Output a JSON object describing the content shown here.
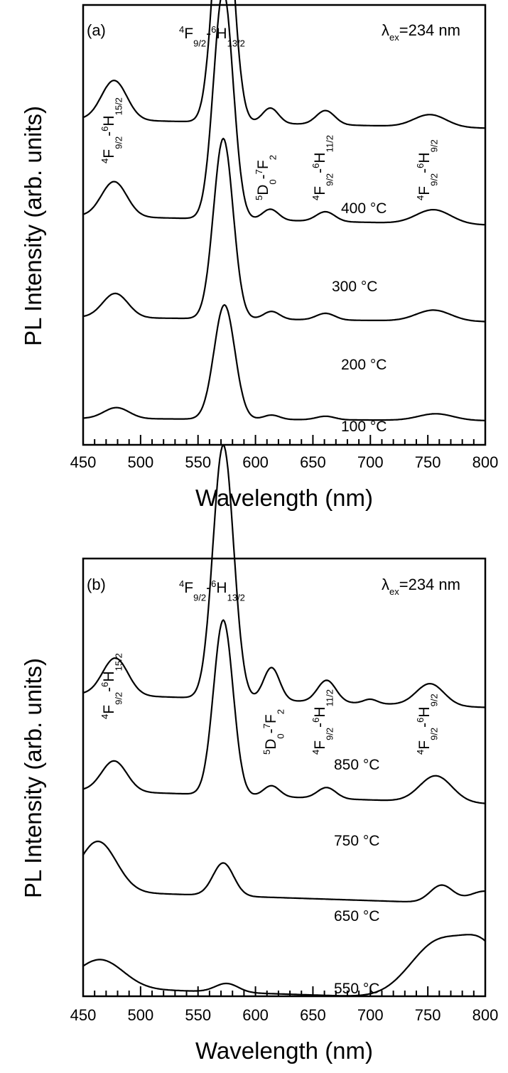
{
  "chart_data": [
    {
      "type": "line",
      "panel_label": "(a)",
      "excitation": {
        "prefix": "λ",
        "sub": "ex",
        "text": "=234 nm"
      },
      "xlabel": "Wavelength (nm)",
      "ylabel": "PL Intensity (arb. units)",
      "xlim": [
        450,
        800
      ],
      "xticks": [
        "450",
        "500",
        "550",
        "600",
        "650",
        "700",
        "750",
        "800"
      ],
      "yticks": [],
      "transitions": [
        {
          "id": "t1",
          "parts": [
            {
              "t": "4",
              "k": "sup"
            },
            {
              "t": "F",
              "k": "n"
            },
            {
              "t": "9/2",
              "k": "sub"
            },
            {
              "t": "-",
              "k": "n"
            },
            {
              "t": "6",
              "k": "sup"
            },
            {
              "t": "H",
              "k": "n"
            },
            {
              "t": "15/2",
              "k": "sub"
            }
          ]
        },
        {
          "id": "t2",
          "parts": [
            {
              "t": "4",
              "k": "sup"
            },
            {
              "t": "F",
              "k": "n"
            },
            {
              "t": "9/2",
              "k": "sub"
            },
            {
              "t": "-",
              "k": "n"
            },
            {
              "t": "6",
              "k": "sup"
            },
            {
              "t": "H",
              "k": "n"
            },
            {
              "t": "13/2",
              "k": "sub"
            }
          ]
        },
        {
          "id": "t3",
          "parts": [
            {
              "t": "5",
              "k": "sup"
            },
            {
              "t": "D",
              "k": "n"
            },
            {
              "t": "0",
              "k": "sub"
            },
            {
              "t": "-",
              "k": "n"
            },
            {
              "t": "7",
              "k": "sup"
            },
            {
              "t": "F",
              "k": "n"
            },
            {
              "t": "2",
              "k": "sub"
            }
          ]
        },
        {
          "id": "t4",
          "parts": [
            {
              "t": "4",
              "k": "sup"
            },
            {
              "t": "F",
              "k": "n"
            },
            {
              "t": "9/2",
              "k": "sub"
            },
            {
              "t": "-",
              "k": "n"
            },
            {
              "t": "6",
              "k": "sup"
            },
            {
              "t": "H",
              "k": "n"
            },
            {
              "t": "11/2",
              "k": "sub"
            }
          ]
        },
        {
          "id": "t5",
          "parts": [
            {
              "t": "4",
              "k": "sup"
            },
            {
              "t": "F",
              "k": "n"
            },
            {
              "t": "9/2",
              "k": "sub"
            },
            {
              "t": "-",
              "k": "n"
            },
            {
              "t": "6",
              "k": "sup"
            },
            {
              "t": "H",
              "k": "n"
            },
            {
              "t": "9/2",
              "k": "sub"
            }
          ]
        }
      ],
      "series": [
        {
          "name": "400 °C",
          "baseline": 0.74,
          "tilt": -0.02,
          "bumps": [
            [
              477,
              11,
              0.09
            ],
            [
              572,
              8.5,
              0.575
            ],
            [
              613,
              7,
              0.035
            ],
            [
              661,
              8,
              0.032
            ],
            [
              752,
              14,
              0.028
            ]
          ]
        },
        {
          "name": "300 °C",
          "baseline": 0.52,
          "tilt": -0.02,
          "bumps": [
            [
              477,
              11,
              0.08
            ],
            [
              572,
              8.5,
              0.52
            ],
            [
              613,
              7,
              0.025
            ],
            [
              661,
              8,
              0.022
            ],
            [
              755,
              15,
              0.032
            ]
          ]
        },
        {
          "name": "200 °C",
          "baseline": 0.29,
          "tilt": -0.01,
          "bumps": [
            [
              478,
              11,
              0.055
            ],
            [
              572,
              8.5,
              0.41
            ],
            [
              614,
              7,
              0.018
            ],
            [
              661,
              8,
              0.015
            ],
            [
              755,
              15,
              0.025
            ]
          ]
        },
        {
          "name": "100 °C",
          "baseline": 0.06,
          "tilt": -0.005,
          "bumps": [
            [
              479,
              11,
              0.025
            ],
            [
              573,
              9,
              0.26
            ],
            [
              614,
              7,
              0.01
            ],
            [
              661,
              8,
              0.008
            ],
            [
              757,
              15,
              0.015
            ]
          ]
        }
      ]
    },
    {
      "type": "line",
      "panel_label": "(b)",
      "excitation": {
        "prefix": "λ",
        "sub": "ex",
        "text": "=234 nm"
      },
      "xlabel": "Wavelength (nm)",
      "ylabel": "PL Intensity (arb. units)",
      "xlim": [
        450,
        800
      ],
      "xticks": [
        "450",
        "500",
        "550",
        "600",
        "650",
        "700",
        "750",
        "800"
      ],
      "yticks": [],
      "transitions": [
        {
          "id": "t1",
          "parts": [
            {
              "t": "4",
              "k": "sup"
            },
            {
              "t": "F",
              "k": "n"
            },
            {
              "t": "9/2",
              "k": "sub"
            },
            {
              "t": "-",
              "k": "n"
            },
            {
              "t": "6",
              "k": "sup"
            },
            {
              "t": "H",
              "k": "n"
            },
            {
              "t": "15/2",
              "k": "sub"
            }
          ]
        },
        {
          "id": "t2",
          "parts": [
            {
              "t": "4",
              "k": "sup"
            },
            {
              "t": "F",
              "k": "n"
            },
            {
              "t": "9/2",
              "k": "sub"
            },
            {
              "t": "-",
              "k": "n"
            },
            {
              "t": "6",
              "k": "sup"
            },
            {
              "t": "H",
              "k": "n"
            },
            {
              "t": "13/2",
              "k": "sub"
            }
          ]
        },
        {
          "id": "t3",
          "parts": [
            {
              "t": "5",
              "k": "sup"
            },
            {
              "t": "D",
              "k": "n"
            },
            {
              "t": "0",
              "k": "sub"
            },
            {
              "t": "-",
              "k": "n"
            },
            {
              "t": "7",
              "k": "sup"
            },
            {
              "t": "F",
              "k": "n"
            },
            {
              "t": "2",
              "k": "sub"
            }
          ]
        },
        {
          "id": "t4",
          "parts": [
            {
              "t": "4",
              "k": "sup"
            },
            {
              "t": "F",
              "k": "n"
            },
            {
              "t": "9/2",
              "k": "sub"
            },
            {
              "t": "-",
              "k": "n"
            },
            {
              "t": "6",
              "k": "sup"
            },
            {
              "t": "H",
              "k": "n"
            },
            {
              "t": "11/2",
              "k": "sub"
            }
          ]
        },
        {
          "id": "t5",
          "parts": [
            {
              "t": "4",
              "k": "sup"
            },
            {
              "t": "F",
              "k": "n"
            },
            {
              "t": "9/2",
              "k": "sub"
            },
            {
              "t": "-",
              "k": "n"
            },
            {
              "t": "6",
              "k": "sup"
            },
            {
              "t": "H",
              "k": "n"
            },
            {
              "t": "9/2",
              "k": "sub"
            }
          ]
        }
      ],
      "series": [
        {
          "name": "850 °C",
          "baseline": 0.69,
          "tilt": -0.03,
          "bumps": [
            [
              478,
              11,
              0.085
            ],
            [
              572,
              9,
              0.58
            ],
            [
              614,
              7,
              0.075
            ],
            [
              662,
              8,
              0.05
            ],
            [
              700,
              6,
              0.01
            ],
            [
              752,
              12,
              0.05
            ]
          ]
        },
        {
          "name": "750 °C",
          "baseline": 0.47,
          "tilt": -0.03,
          "bumps": [
            [
              477,
              11,
              0.07
            ],
            [
              572,
              8.5,
              0.4
            ],
            [
              614,
              7,
              0.025
            ],
            [
              662,
              8,
              0.025
            ],
            [
              757,
              14,
              0.06
            ]
          ]
        },
        {
          "name": "650 °C",
          "baseline": 0.24,
          "tilt": -0.03,
          "bumps": [
            [
              463,
              16,
              0.115
            ],
            [
              572,
              9,
              0.075
            ],
            [
              762,
              10,
              0.04
            ],
            [
              800,
              14,
              0.03
            ]
          ]
        },
        {
          "name": "550 °C",
          "baseline": 0.02,
          "tilt": -0.03,
          "bumps": [
            [
              465,
              20,
              0.065
            ],
            [
              575,
              10,
              0.02
            ],
            [
              760,
              25,
              0.13
            ],
            [
              800,
              18,
              0.1
            ]
          ]
        }
      ]
    }
  ]
}
